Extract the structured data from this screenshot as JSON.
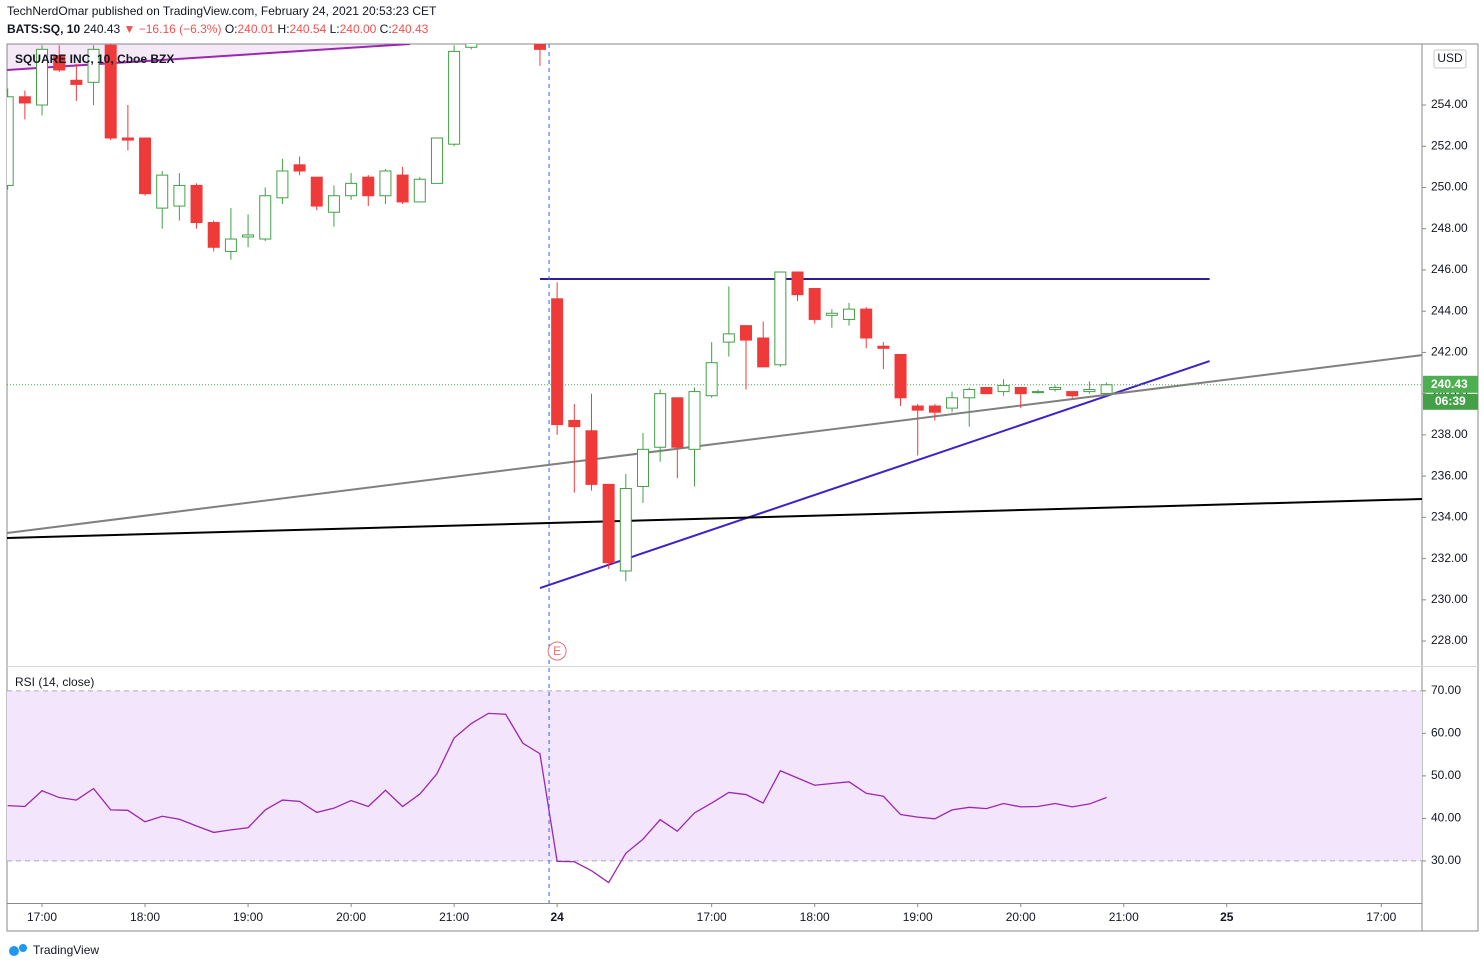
{
  "header": {
    "publisher_line": "TechNerdOmar published on TradingView.com, February 24, 2021 20:53:23 CET",
    "symbol": "BATS:SQ, 10",
    "arrow": "▼",
    "change": "−16.16 (−6.3%)",
    "ohlc_labels": [
      "O:",
      "H:",
      "L:",
      "C:"
    ],
    "l_value": "240.00"
  },
  "chart_data": [
    {
      "type": "candlestick",
      "title": "SQUARE INC, 10, Cboe BZX",
      "currency": "USD",
      "countdown": "06:39",
      "up_color": "#43a047",
      "down_color": "#ef3a3a",
      "x": [
        -2,
        -1,
        0,
        1,
        2,
        3,
        4,
        5,
        6,
        7,
        8,
        9,
        10,
        11,
        12,
        13,
        14,
        15,
        16,
        17,
        18,
        19,
        20,
        21,
        22,
        23,
        24,
        25,
        26,
        27,
        28,
        29,
        30,
        31,
        32,
        33,
        34,
        35,
        36,
        37,
        38,
        39,
        40,
        41,
        42,
        43,
        44,
        45,
        46,
        47,
        48,
        49,
        50,
        51,
        52,
        53,
        54,
        55,
        56,
        57,
        58,
        59,
        60,
        61,
        62
      ],
      "open": [
        250.1,
        254.4,
        254.0,
        256.4,
        255.2,
        255.1,
        256.9,
        252.4,
        252.4,
        249.0,
        249.1,
        250.1,
        248.3,
        246.9,
        247.6,
        247.5,
        249.5,
        251.1,
        250.5,
        248.8,
        249.6,
        250.5,
        249.6,
        250.6,
        249.3,
        250.2,
        252.1,
        256.8,
        null,
        null,
        null,
        257.2,
        244.6,
        238.7,
        238.2,
        235.6,
        231.4,
        235.5,
        237.4,
        239.8,
        237.3,
        239.9,
        242.5,
        243.3,
        242.7,
        241.4,
        245.9,
        245.1,
        243.8,
        243.6,
        244.1,
        242.3,
        241.9,
        239.4,
        239.4,
        239.3,
        239.8,
        240.3,
        240.1,
        240.3,
        240.05,
        240.2,
        240.1,
        240.1,
        240.01
      ],
      "high": [
        254.8,
        254.7,
        256.9,
        256.9,
        256.0,
        256.9,
        257.0,
        254.0,
        252.4,
        250.8,
        250.7,
        250.2,
        248.4,
        249.0,
        248.7,
        250.0,
        251.4,
        251.5,
        250.5,
        250.1,
        250.7,
        250.6,
        250.9,
        251.0,
        250.5,
        252.4,
        256.9,
        257.5,
        null,
        null,
        null,
        257.3,
        245.4,
        239.5,
        240.0,
        235.6,
        236.1,
        238.1,
        240.2,
        239.8,
        240.3,
        242.5,
        245.2,
        243.3,
        243.5,
        245.9,
        245.9,
        245.1,
        244.1,
        244.4,
        244.2,
        242.5,
        241.9,
        239.5,
        239.5,
        240.1,
        240.3,
        240.3,
        240.7,
        240.3,
        240.2,
        240.4,
        240.1,
        240.6,
        240.54
      ],
      "low": [
        249.9,
        253.3,
        253.5,
        255.6,
        254.2,
        254.0,
        252.3,
        251.8,
        249.6,
        248.0,
        248.4,
        248.0,
        246.9,
        246.5,
        247.1,
        247.4,
        249.2,
        250.6,
        248.9,
        248.1,
        249.4,
        249.1,
        249.2,
        249.2,
        249.3,
        250.2,
        252.0,
        256.7,
        null,
        null,
        null,
        255.9,
        238.0,
        235.2,
        235.3,
        231.5,
        230.9,
        234.7,
        236.7,
        235.9,
        235.5,
        239.8,
        241.8,
        240.2,
        241.3,
        241.3,
        244.5,
        243.4,
        243.2,
        243.3,
        242.2,
        241.2,
        239.4,
        237.0,
        238.7,
        239.1,
        238.4,
        240.0,
        239.9,
        239.3,
        240.0,
        240.1,
        239.8,
        240.0,
        240.0
      ],
      "close": [
        254.4,
        254.1,
        256.7,
        255.7,
        255.0,
        256.7,
        252.4,
        252.3,
        249.7,
        250.6,
        250.1,
        248.3,
        247.1,
        247.5,
        247.7,
        249.6,
        250.8,
        250.8,
        249.1,
        249.6,
        250.2,
        249.6,
        250.8,
        249.3,
        250.4,
        252.4,
        256.6,
        257.2,
        null,
        null,
        null,
        256.7,
        238.5,
        238.4,
        235.6,
        231.8,
        235.4,
        237.3,
        240.0,
        237.4,
        240.1,
        241.5,
        242.9,
        242.6,
        241.3,
        245.9,
        244.8,
        243.6,
        243.9,
        244.1,
        242.7,
        242.2,
        239.8,
        239.2,
        239.1,
        239.8,
        240.2,
        240.0,
        240.4,
        240.0,
        240.1,
        240.3,
        239.9,
        240.2,
        240.43
      ],
      "xlim": [
        -2.04,
        80.37
      ],
      "ylim": [
        226.79,
        256.96
      ],
      "yticks": [
        {
          "value": 228,
          "label": "228.00"
        },
        {
          "value": 230,
          "label": "230.00"
        },
        {
          "value": 232,
          "label": "232.00"
        },
        {
          "value": 234,
          "label": "234.00"
        },
        {
          "value": 236,
          "label": "236.00"
        },
        {
          "value": 238,
          "label": "238.00"
        },
        {
          "value": 240,
          "label": "240.00"
        },
        {
          "value": 242,
          "label": "242.00"
        },
        {
          "value": 244,
          "label": "244.00"
        },
        {
          "value": 246,
          "label": "246.00"
        },
        {
          "value": 248,
          "label": "248.00"
        },
        {
          "value": 250,
          "label": "250.00"
        },
        {
          "value": 252,
          "label": "252.00"
        },
        {
          "value": 254,
          "label": "254.00"
        }
      ],
      "lines": [
        {
          "x": [
            -2.04,
            21.43
          ],
          "y": [
            255.7,
            256.96
          ],
          "color": "#9c27b0",
          "fill_above": true
        },
        {
          "x": [
            29.0,
            68.0
          ],
          "y": [
            245.56,
            245.56
          ],
          "color": "#311b92"
        },
        {
          "x": [
            29.0,
            68.0
          ],
          "y": [
            230.57,
            241.58
          ],
          "color": "#3f20c9"
        },
        {
          "x": [
            -2.04,
            80.37
          ],
          "y": [
            233.24,
            241.87
          ],
          "color": "#808080"
        },
        {
          "x": [
            -2.04,
            80.37
          ],
          "y": [
            233.0,
            234.89
          ],
          "color": "#000000"
        }
      ],
      "vline": 29.53,
      "event": {
        "x": 30,
        "label": "E"
      }
    },
    {
      "type": "line",
      "title": "RSI (14, close)",
      "color": "#9c27b0",
      "x": [
        -2,
        -1,
        0,
        1,
        2,
        3,
        4,
        5,
        6,
        7,
        8,
        9,
        10,
        11,
        12,
        13,
        14,
        15,
        16,
        17,
        18,
        19,
        20,
        21,
        22,
        23,
        24,
        25,
        26,
        27,
        28,
        29,
        30,
        31,
        32,
        33,
        34,
        35,
        36,
        37,
        38,
        39,
        40,
        41,
        42,
        43,
        44,
        45,
        46,
        47,
        48,
        49,
        50,
        51,
        52,
        53,
        54,
        55,
        56,
        57,
        58,
        59,
        60,
        61,
        62
      ],
      "values": [
        43.0,
        42.8,
        46.5,
        44.9,
        44.3,
        47.0,
        42.0,
        41.9,
        39.2,
        40.5,
        39.8,
        38.2,
        36.7,
        37.3,
        37.8,
        42.0,
        44.3,
        44.0,
        41.4,
        42.4,
        44.2,
        42.8,
        46.6,
        42.8,
        45.7,
        50.5,
        58.9,
        62.3,
        64.7,
        64.5,
        57.7,
        55.2,
        29.9,
        29.8,
        27.7,
        24.9,
        31.8,
        35.1,
        39.7,
        37.0,
        41.3,
        43.6,
        46.1,
        45.6,
        43.6,
        51.2,
        49.5,
        47.8,
        48.2,
        48.6,
        45.9,
        45.2,
        40.9,
        40.3,
        39.9,
        42.0,
        42.6,
        42.3,
        43.5,
        42.7,
        42.8,
        43.5,
        42.7,
        43.4,
        44.9
      ],
      "band": [
        30,
        70
      ],
      "xlim": [
        -2.04,
        80.37
      ],
      "ylim": [
        20.1,
        75.6
      ],
      "yticks": [
        {
          "value": 30,
          "label": "30.00"
        },
        {
          "value": 40,
          "label": "40.00"
        },
        {
          "value": 50,
          "label": "50.00"
        },
        {
          "value": 60,
          "label": "60.00"
        },
        {
          "value": 70,
          "label": "70.00"
        }
      ],
      "xticks": [
        {
          "value": 0,
          "label": "17:00"
        },
        {
          "value": 6,
          "label": "18:00"
        },
        {
          "value": 12,
          "label": "19:00"
        },
        {
          "value": 18,
          "label": "20:00"
        },
        {
          "value": 24,
          "label": "21:00"
        },
        {
          "value": 30,
          "label": "24"
        },
        {
          "value": 39,
          "label": "17:00"
        },
        {
          "value": 45,
          "label": "18:00"
        },
        {
          "value": 51,
          "label": "19:00"
        },
        {
          "value": 57,
          "label": "20:00"
        },
        {
          "value": 63,
          "label": "21:00"
        },
        {
          "value": 69,
          "label": "25"
        },
        {
          "value": 78,
          "label": "17:00"
        }
      ]
    }
  ],
  "footer": {
    "brand": "TradingView"
  }
}
